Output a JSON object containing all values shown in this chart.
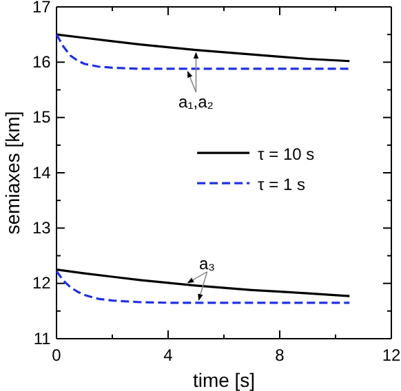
{
  "chart_data": {
    "type": "line",
    "xlabel": "time [s]",
    "ylabel": "semiaxes [km]",
    "xlim": [
      0,
      12
    ],
    "xticks": [
      0,
      {
        "value": 2,
        "label": null
      },
      4,
      {
        "value": 6,
        "label": null
      },
      8,
      {
        "value": 10,
        "label": null
      },
      12
    ],
    "ylim": [
      11,
      17
    ],
    "yticks": [
      11,
      {
        "value": 11.5,
        "label": null
      },
      12,
      {
        "value": 12.5,
        "label": null
      },
      13,
      {
        "value": 13.5,
        "label": null
      },
      14,
      {
        "value": 14.5,
        "label": null
      },
      15,
      {
        "value": 15.5,
        "label": null
      },
      16,
      {
        "value": 16.5,
        "label": null
      },
      17
    ],
    "grid": false,
    "legend": "center",
    "marker": "none",
    "series": [
      {
        "name": "τ = 10 s",
        "color": "#000000",
        "line_style": "solid",
        "x": [
          0,
          1,
          2,
          3,
          4,
          5,
          6,
          7,
          8,
          9,
          10.5
        ],
        "values": [
          16.5,
          16.44,
          16.38,
          16.32,
          16.27,
          16.22,
          16.18,
          16.14,
          16.1,
          16.06,
          16.02
        ]
      },
      {
        "name": "τ = 1 s",
        "color": "#1f2fe0",
        "line_style": "dashed",
        "x": [
          0,
          0.25,
          0.5,
          0.75,
          1,
          1.5,
          2,
          3,
          4,
          6,
          8,
          10.5
        ],
        "values": [
          16.5,
          16.28,
          16.12,
          16.03,
          15.97,
          15.92,
          15.9,
          15.88,
          15.88,
          15.88,
          15.88,
          15.88
        ]
      },
      {
        "color": "#000000",
        "line_style": "solid",
        "x": [
          0,
          1,
          2,
          3,
          4,
          5,
          6,
          7,
          8,
          9,
          10.5
        ],
        "values": [
          12.25,
          12.18,
          12.12,
          12.06,
          12.01,
          11.96,
          11.92,
          11.88,
          11.85,
          11.82,
          11.77
        ]
      },
      {
        "color": "#1f2fe0",
        "line_style": "dashed",
        "x": [
          0,
          0.25,
          0.5,
          0.75,
          1,
          1.5,
          2,
          3,
          4,
          6,
          8,
          10.5
        ],
        "values": [
          12.22,
          12.05,
          11.93,
          11.85,
          11.79,
          11.72,
          11.69,
          11.66,
          11.65,
          11.65,
          11.65,
          11.65
        ]
      }
    ],
    "annotations": [
      {
        "text": "a₁,a₂",
        "x": 5,
        "y": 16.22
      },
      {
        "text": "a₃",
        "x": 5,
        "y": 11.96
      }
    ]
  }
}
